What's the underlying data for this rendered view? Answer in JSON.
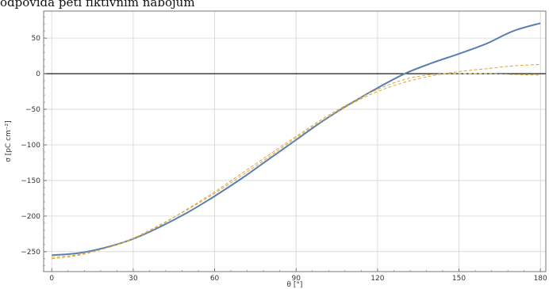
{
  "chart_data": {
    "type": "line",
    "title": "odpovídá pěti fiktivním nábojům",
    "xlabel": "θ [°]",
    "ylabel": "σ [pC cm⁻²]",
    "xlim": [
      -3,
      182
    ],
    "ylim": [
      -278,
      88
    ],
    "xticks": [
      0,
      30,
      60,
      90,
      120,
      150,
      180
    ],
    "yticks": [
      -250,
      -200,
      -150,
      -100,
      -50,
      0,
      50
    ],
    "xtick_labels": [
      "0",
      "30",
      "60",
      "90",
      "120",
      "150",
      "180"
    ],
    "ytick_labels": [
      "−250",
      "−200",
      "−150",
      "−100",
      "−50",
      "0",
      "50"
    ],
    "grid": true,
    "colors": {
      "solid": "#5b7fae",
      "dashed": "#dba53a",
      "axis": "#000000",
      "grid": "#d4d4d4"
    },
    "series": [
      {
        "style": "solid",
        "x": [
          0,
          10,
          20,
          30,
          40,
          50,
          60,
          70,
          80,
          90,
          100,
          110,
          120,
          130,
          140,
          150,
          160,
          170,
          180
        ],
        "y": [
          -255,
          -252,
          -244,
          -232,
          -215,
          -195,
          -172,
          -147,
          -120,
          -93,
          -66,
          -42,
          -20,
          0,
          15,
          28,
          42,
          60,
          71
        ]
      },
      {
        "style": "dashed",
        "x": [
          0,
          10,
          20,
          30,
          40,
          50,
          60,
          70,
          80,
          90,
          100,
          110,
          120,
          130,
          140,
          150,
          160,
          170,
          180
        ],
        "y": [
          -258,
          -254,
          -245,
          -232,
          -213,
          -190,
          -166,
          -140,
          -114,
          -88,
          -63,
          -41,
          -22,
          -8,
          -1,
          0,
          0,
          -1,
          -2
        ]
      },
      {
        "style": "dashed",
        "x": [
          0,
          10,
          20,
          30,
          40,
          50,
          60,
          70,
          80,
          90,
          100,
          110,
          120,
          130,
          140,
          150,
          160,
          170,
          180
        ],
        "y": [
          -260,
          -255,
          -245,
          -231,
          -212,
          -191,
          -168,
          -143,
          -117,
          -90,
          -65,
          -43,
          -25,
          -12,
          -3,
          3,
          7,
          11,
          13
        ]
      }
    ]
  }
}
